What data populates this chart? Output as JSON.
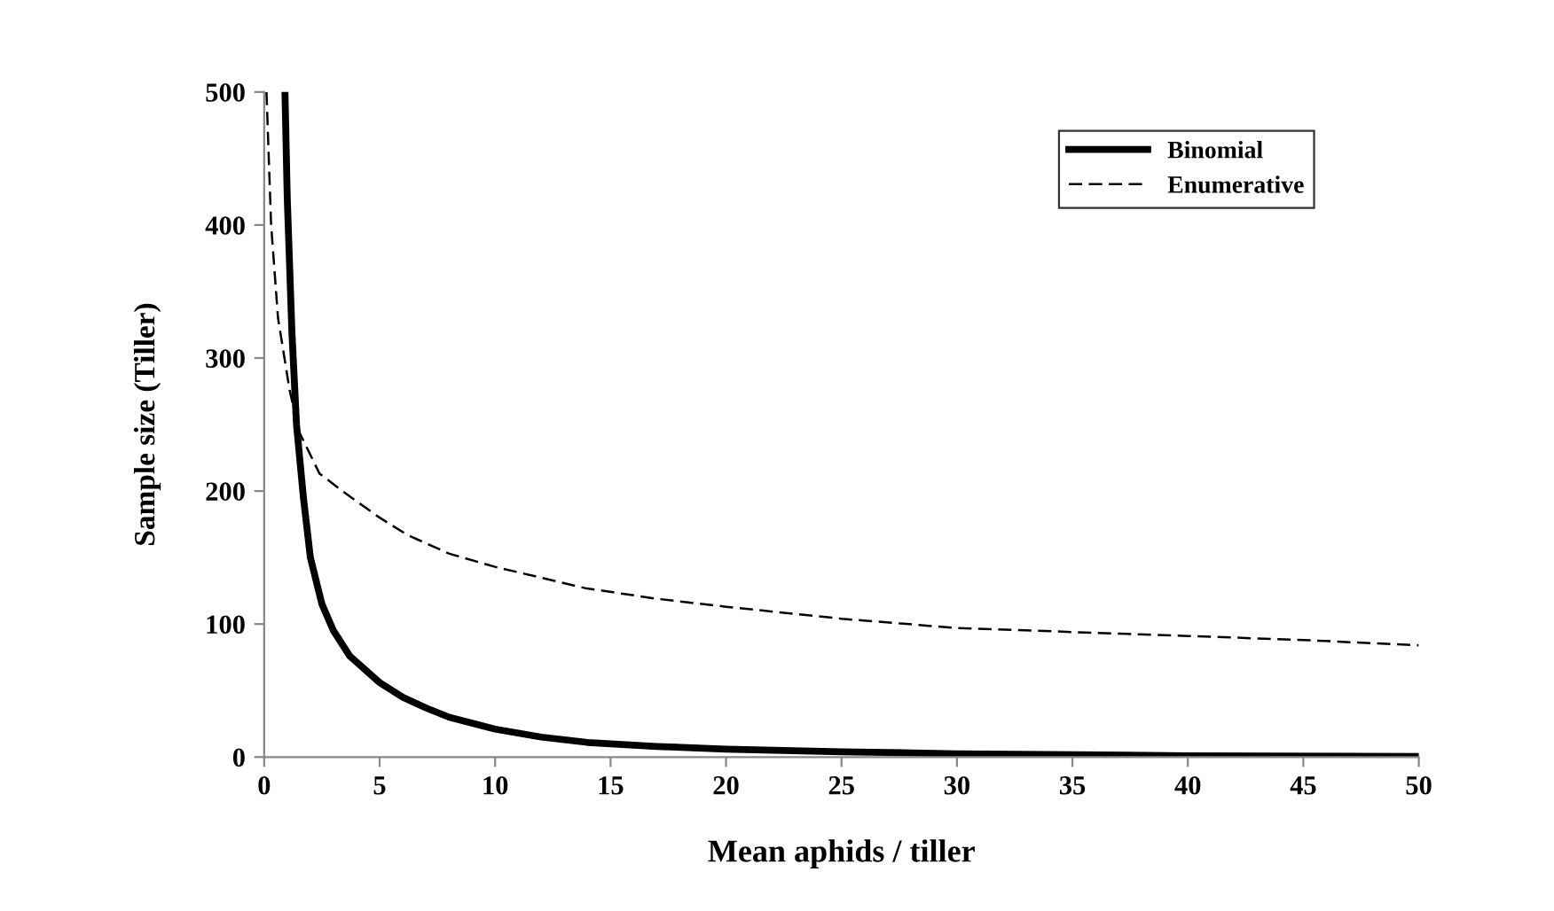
{
  "chart_data": {
    "type": "line",
    "xlabel": "Mean aphids / tiller",
    "ylabel": "Sample size (Tiller)",
    "xlim": [
      0,
      50
    ],
    "ylim": [
      0,
      500
    ],
    "xticks": [
      0,
      5,
      10,
      15,
      20,
      25,
      30,
      35,
      40,
      45,
      50
    ],
    "yticks": [
      0,
      100,
      200,
      300,
      400,
      500
    ],
    "grid": false,
    "legend": "top right",
    "marker": "none",
    "series": [
      {
        "name": "Binomial",
        "color": "#000000",
        "line_style": "solid",
        "x": [
          0.9,
          1.0,
          1.2,
          1.4,
          1.7,
          2,
          2.5,
          3,
          3.7,
          5,
          6,
          7,
          8,
          10,
          12,
          14,
          17,
          20,
          25,
          30,
          40,
          50
        ],
        "values": [
          500,
          420,
          320,
          250,
          195,
          150,
          115,
          95,
          76,
          56,
          45,
          37,
          30,
          21,
          15,
          11,
          8,
          6,
          4,
          2.5,
          1,
          0.5
        ]
      },
      {
        "name": "Enumerative",
        "color": "#000000",
        "line_style": "dashed",
        "x": [
          0.1,
          0.3,
          0.6,
          1.1,
          1.5,
          2.4,
          3.7,
          5,
          6.2,
          8,
          10,
          13.9,
          17,
          20,
          25,
          30,
          35,
          40,
          45,
          50
        ],
        "values": [
          500,
          400,
          330,
          276,
          245,
          213,
          196,
          180,
          167,
          153,
          143,
          127,
          119,
          113,
          104,
          97,
          94,
          91,
          88,
          84
        ]
      }
    ]
  }
}
